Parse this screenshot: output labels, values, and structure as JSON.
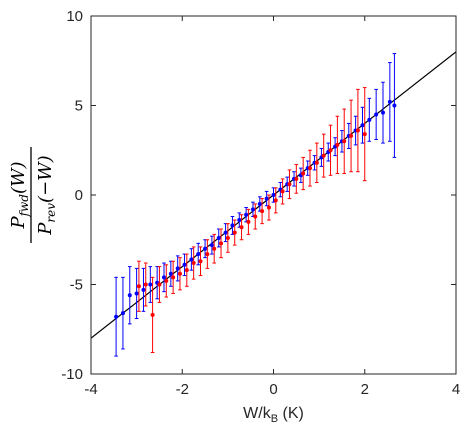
{
  "chart_data": {
    "type": "scatter",
    "title": "",
    "xlabel": {
      "main": "W/k",
      "sub": "B",
      "rest": " (K)"
    },
    "ylabel": {
      "num_main": "P",
      "num_sub": "fwd",
      "num_arg": "(W)",
      "den_main": "P",
      "den_sub": "rev",
      "den_arg": "(−W)"
    },
    "xlim": [
      -4,
      4
    ],
    "ylim": [
      -10,
      10
    ],
    "x_ticks": [
      -4,
      -2,
      0,
      2,
      4
    ],
    "x_tick_labels": [
      "-4",
      "-2",
      "0",
      "2",
      "4"
    ],
    "y_ticks": [
      -10,
      -5,
      0,
      5,
      10
    ],
    "y_tick_labels": [
      "-10",
      "-5",
      "0",
      "5",
      "10"
    ],
    "grid": false,
    "fit_line": {
      "slope": 2.0,
      "intercept": 0.0,
      "color": "#000000"
    },
    "series": [
      {
        "color": "#0000ff",
        "points": [
          {
            "x": -3.45,
            "y": -6.8,
            "err": 2.2
          },
          {
            "x": -3.3,
            "y": -6.6,
            "err": 2.0
          },
          {
            "x": -3.15,
            "y": -5.6,
            "err": 1.6
          },
          {
            "x": -3.0,
            "y": -5.5,
            "err": 1.4
          },
          {
            "x": -2.85,
            "y": -5.3,
            "err": 1.2
          },
          {
            "x": -2.7,
            "y": -5.0,
            "err": 1.0
          },
          {
            "x": -2.55,
            "y": -4.9,
            "err": 0.9
          },
          {
            "x": -2.4,
            "y": -4.6,
            "err": 0.8
          },
          {
            "x": -2.25,
            "y": -4.4,
            "err": 0.7
          },
          {
            "x": -2.1,
            "y": -4.1,
            "err": 0.7
          },
          {
            "x": -1.95,
            "y": -3.9,
            "err": 0.6
          },
          {
            "x": -1.8,
            "y": -3.6,
            "err": 0.6
          },
          {
            "x": -1.65,
            "y": -3.3,
            "err": 0.6
          },
          {
            "x": -1.5,
            "y": -3.0,
            "err": 0.5
          },
          {
            "x": -1.35,
            "y": -2.8,
            "err": 0.5
          },
          {
            "x": -1.2,
            "y": -2.4,
            "err": 0.5
          },
          {
            "x": -1.05,
            "y": -2.1,
            "err": 0.5
          },
          {
            "x": -0.9,
            "y": -1.7,
            "err": 0.5
          },
          {
            "x": -0.75,
            "y": -1.4,
            "err": 0.4
          },
          {
            "x": -0.6,
            "y": -1.1,
            "err": 0.4
          },
          {
            "x": -0.45,
            "y": -0.8,
            "err": 0.4
          },
          {
            "x": -0.3,
            "y": -0.5,
            "err": 0.4
          },
          {
            "x": -0.15,
            "y": -0.2,
            "err": 0.4
          },
          {
            "x": 0.0,
            "y": 0.0,
            "err": 0.4
          },
          {
            "x": 0.15,
            "y": 0.3,
            "err": 0.4
          },
          {
            "x": 0.3,
            "y": 0.6,
            "err": 0.4
          },
          {
            "x": 0.45,
            "y": 0.9,
            "err": 0.4
          },
          {
            "x": 0.6,
            "y": 1.1,
            "err": 0.4
          },
          {
            "x": 0.75,
            "y": 1.5,
            "err": 0.4
          },
          {
            "x": 0.9,
            "y": 1.8,
            "err": 0.4
          },
          {
            "x": 1.05,
            "y": 2.1,
            "err": 0.5
          },
          {
            "x": 1.2,
            "y": 2.4,
            "err": 0.5
          },
          {
            "x": 1.35,
            "y": 2.7,
            "err": 0.5
          },
          {
            "x": 1.5,
            "y": 3.0,
            "err": 0.6
          },
          {
            "x": 1.65,
            "y": 3.3,
            "err": 0.7
          },
          {
            "x": 1.8,
            "y": 3.6,
            "err": 0.8
          },
          {
            "x": 1.95,
            "y": 3.9,
            "err": 1.0
          },
          {
            "x": 2.1,
            "y": 4.2,
            "err": 1.2
          },
          {
            "x": 2.25,
            "y": 4.5,
            "err": 1.4
          },
          {
            "x": 2.4,
            "y": 4.6,
            "err": 1.7
          },
          {
            "x": 2.55,
            "y": 5.2,
            "err": 2.2
          },
          {
            "x": 2.65,
            "y": 5.0,
            "err": 2.9
          }
        ]
      },
      {
        "color": "#ff0000",
        "points": [
          {
            "x": -2.95,
            "y": -5.1,
            "err": 1.4
          },
          {
            "x": -2.8,
            "y": -5.0,
            "err": 1.2
          },
          {
            "x": -2.65,
            "y": -6.7,
            "err": 2.1
          },
          {
            "x": -2.5,
            "y": -5.0,
            "err": 1.0
          },
          {
            "x": -2.35,
            "y": -4.8,
            "err": 0.9
          },
          {
            "x": -2.2,
            "y": -4.6,
            "err": 0.9
          },
          {
            "x": -2.05,
            "y": -4.4,
            "err": 0.9
          },
          {
            "x": -1.9,
            "y": -4.2,
            "err": 0.9
          },
          {
            "x": -1.75,
            "y": -3.8,
            "err": 0.9
          },
          {
            "x": -1.6,
            "y": -3.7,
            "err": 0.8
          },
          {
            "x": -1.45,
            "y": -3.3,
            "err": 0.8
          },
          {
            "x": -1.3,
            "y": -3.0,
            "err": 0.8
          },
          {
            "x": -1.15,
            "y": -2.7,
            "err": 0.8
          },
          {
            "x": -1.0,
            "y": -2.4,
            "err": 0.8
          },
          {
            "x": -0.85,
            "y": -2.1,
            "err": 0.7
          },
          {
            "x": -0.7,
            "y": -1.8,
            "err": 0.7
          },
          {
            "x": -0.55,
            "y": -1.5,
            "err": 0.7
          },
          {
            "x": -0.4,
            "y": -1.2,
            "err": 0.7
          },
          {
            "x": -0.25,
            "y": -0.9,
            "err": 0.7
          },
          {
            "x": -0.1,
            "y": -0.7,
            "err": 0.7
          },
          {
            "x": 0.05,
            "y": -0.3,
            "err": 0.7
          },
          {
            "x": 0.2,
            "y": 0.2,
            "err": 0.7
          },
          {
            "x": 0.35,
            "y": 0.6,
            "err": 0.8
          },
          {
            "x": 0.5,
            "y": 0.9,
            "err": 0.8
          },
          {
            "x": 0.65,
            "y": 1.2,
            "err": 0.9
          },
          {
            "x": 0.8,
            "y": 1.5,
            "err": 1.0
          },
          {
            "x": 0.95,
            "y": 1.8,
            "err": 1.1
          },
          {
            "x": 1.1,
            "y": 2.2,
            "err": 1.2
          },
          {
            "x": 1.25,
            "y": 2.5,
            "err": 1.4
          },
          {
            "x": 1.4,
            "y": 2.8,
            "err": 1.6
          },
          {
            "x": 1.55,
            "y": 3.0,
            "err": 1.8
          },
          {
            "x": 1.7,
            "y": 3.3,
            "err": 2.0
          },
          {
            "x": 1.85,
            "y": 3.6,
            "err": 2.3
          },
          {
            "x": 2.0,
            "y": 3.4,
            "err": 2.6
          }
        ]
      }
    ]
  }
}
